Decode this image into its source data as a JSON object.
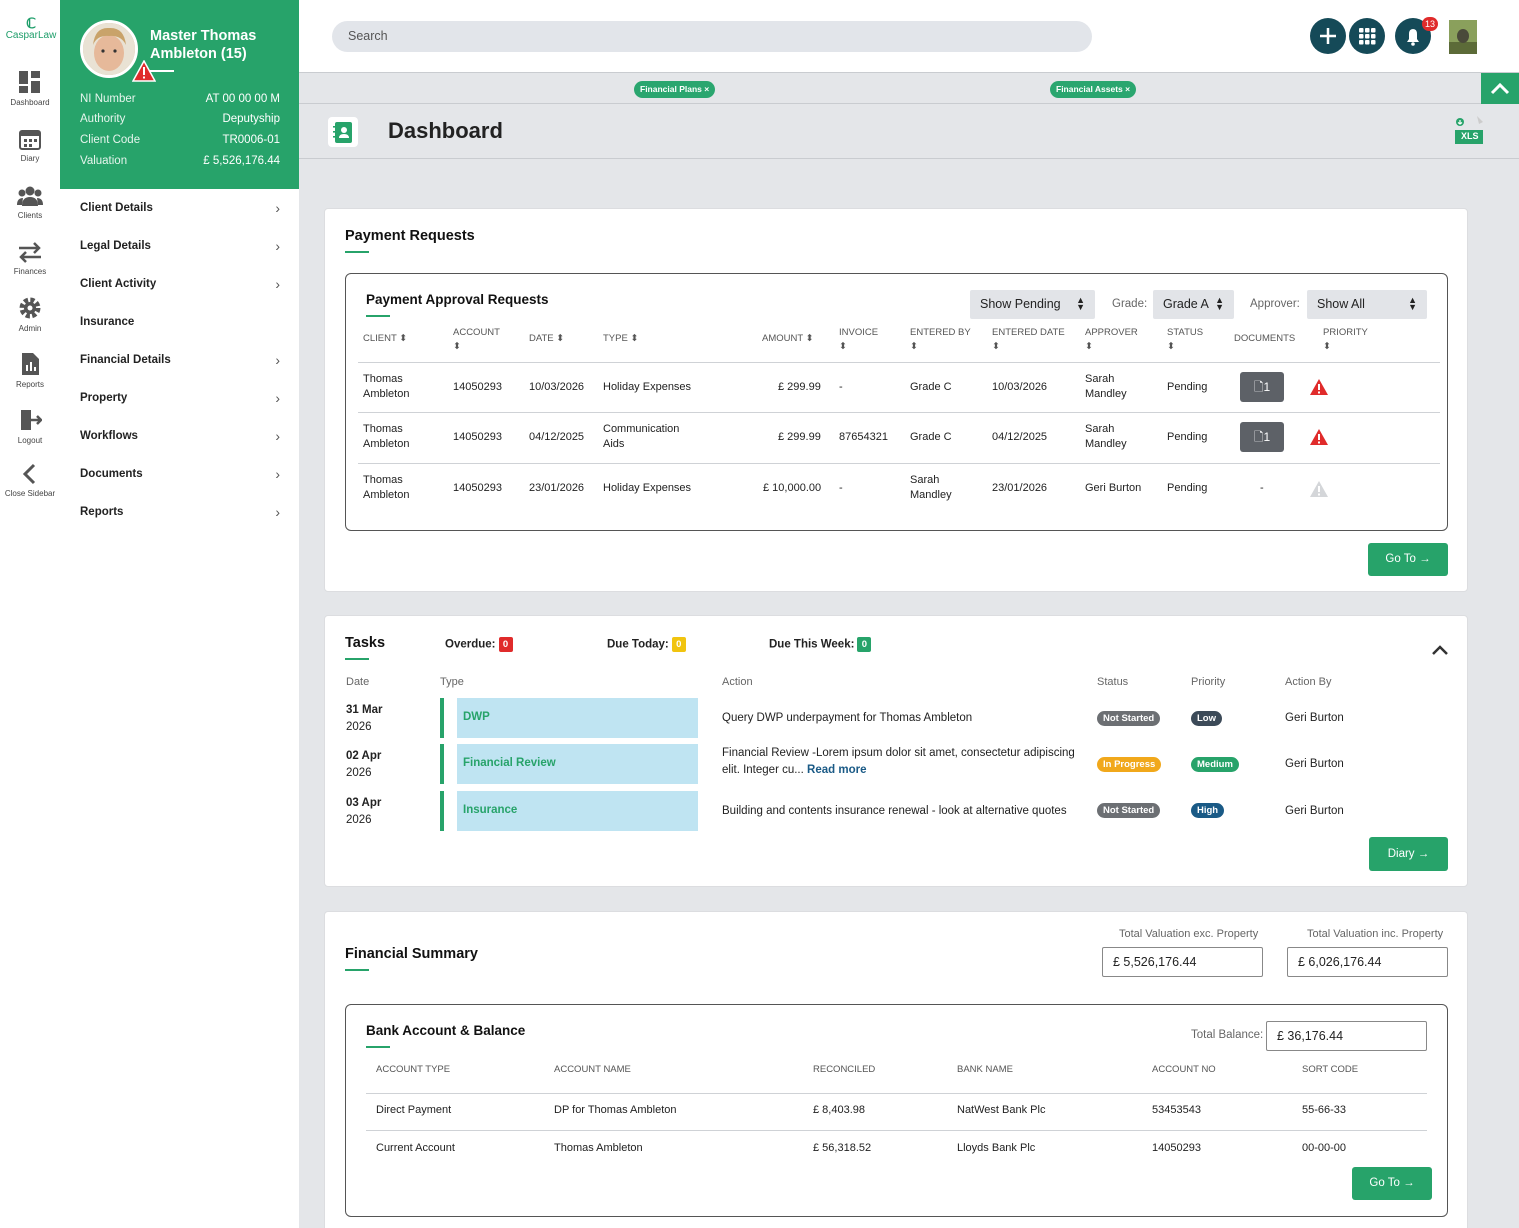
{
  "brand": {
    "name": "CasparLaw"
  },
  "rail": [
    {
      "label": "Dashboard",
      "icon": "dashboard-icon"
    },
    {
      "label": "Diary",
      "icon": "calendar-icon"
    },
    {
      "label": "Clients",
      "icon": "users-icon"
    },
    {
      "label": "Finances",
      "icon": "transfer-icon"
    },
    {
      "label": "Admin",
      "icon": "gear-icon"
    },
    {
      "label": "Reports",
      "icon": "report-icon"
    },
    {
      "label": "Logout",
      "icon": "logout-icon"
    },
    {
      "label": "Close Sidebar",
      "icon": "chevron-left-icon"
    }
  ],
  "client": {
    "name": "Master Thomas Ambleton (15)",
    "fields": [
      {
        "label": "NI Number",
        "value": "AT 00 00 00 M"
      },
      {
        "label": "Authority",
        "value": "Deputyship"
      },
      {
        "label": "Client Code",
        "value": "TR0006-01"
      },
      {
        "label": "Valuation",
        "value": "£ 5,526,176.44"
      }
    ]
  },
  "menu": [
    {
      "label": "Client Details",
      "chevron": true
    },
    {
      "label": "Legal Details",
      "chevron": true
    },
    {
      "label": "Client Activity",
      "chevron": true
    },
    {
      "label": "Insurance",
      "chevron": false
    },
    {
      "label": "Financial Details",
      "chevron": true
    },
    {
      "label": "Property",
      "chevron": true
    },
    {
      "label": "Workflows",
      "chevron": true
    },
    {
      "label": "Documents",
      "chevron": true
    },
    {
      "label": "Reports",
      "chevron": true
    }
  ],
  "topbar": {
    "search_placeholder": "Search",
    "notification_count": "13"
  },
  "filters": [
    {
      "label": "Financial Plans ×"
    },
    {
      "label": "Financial Assets ×"
    }
  ],
  "page": {
    "title": "Dashboard",
    "export_label": "XLS"
  },
  "payment_requests": {
    "title": "Payment Requests",
    "inner_title": "Payment Approval Requests",
    "status_filter": "Show Pending",
    "grade_label": "Grade:",
    "grade_value": "Grade A",
    "approver_label": "Approver:",
    "approver_value": "Show All",
    "columns": [
      "CLIENT",
      "ACCOUNT",
      "DATE",
      "TYPE",
      "AMOUNT",
      "INVOICE",
      "ENTERED BY",
      "ENTERED DATE",
      "APPROVER",
      "STATUS",
      "DOCUMENTS",
      "PRIORITY"
    ],
    "rows": [
      {
        "client": [
          "Thomas",
          "Ambleton"
        ],
        "account": "14050293",
        "date": "10/03/2026",
        "type": [
          "Holiday Expenses"
        ],
        "amount": "£ 299.99",
        "invoice": "-",
        "entered_by": [
          "Grade C"
        ],
        "entered_date": "10/03/2026",
        "approver": [
          "Sarah",
          "Mandley"
        ],
        "status": "Pending",
        "documents": "1",
        "priority": "high"
      },
      {
        "client": [
          "Thomas",
          "Ambleton"
        ],
        "account": "14050293",
        "date": "04/12/2025",
        "type": [
          "Communication",
          "Aids"
        ],
        "amount": "£ 299.99",
        "invoice": "87654321",
        "entered_by": [
          "Grade C"
        ],
        "entered_date": "04/12/2025",
        "approver": [
          "Sarah",
          "Mandley"
        ],
        "status": "Pending",
        "documents": "1",
        "priority": "high"
      },
      {
        "client": [
          "Thomas",
          "Ambleton"
        ],
        "account": "14050293",
        "date": "23/01/2026",
        "type": [
          "Holiday Expenses"
        ],
        "amount": "£ 10,000.00",
        "invoice": "-",
        "entered_by": [
          "Sarah",
          "Mandley"
        ],
        "entered_date": "23/01/2026",
        "approver": [
          "Geri Burton"
        ],
        "status": "Pending",
        "documents": "-",
        "priority": "none"
      }
    ],
    "goto_label": "Go To"
  },
  "tasks": {
    "title": "Tasks",
    "overdue_label": "Overdue:",
    "overdue_count": "0",
    "today_label": "Due Today:",
    "today_count": "0",
    "week_label": "Due This Week:",
    "week_count": "0",
    "columns": [
      "Date",
      "Type",
      "Action",
      "Status",
      "Priority",
      "Action By"
    ],
    "rows": [
      {
        "date": "31 Mar",
        "year": "2026",
        "type": "DWP",
        "action": "Query DWP underpayment for Thomas Ambleton",
        "action_more": "",
        "status": "Not Started",
        "priority": "Low",
        "action_by": "Geri Burton"
      },
      {
        "date": "02 Apr",
        "year": "2026",
        "type": "Financial Review",
        "action": "Financial Review -Lorem ipsum dolor sit amet, consectetur adipiscing",
        "action2": "elit. Integer cu...",
        "action_more": "Read more",
        "status": "In Progress",
        "priority": "Medium",
        "action_by": "Geri Burton"
      },
      {
        "date": "03 Apr",
        "year": "2026",
        "type": "Insurance",
        "action": "Building and contents insurance renewal - look at alternative quotes",
        "action_more": "",
        "status": "Not Started",
        "priority": "High",
        "action_by": "Geri Burton"
      }
    ],
    "diary_label": "Diary",
    "colors": {
      "not_started": "#6c6f73",
      "in_progress": "#f1a81b",
      "low": "#3c4a58",
      "medium": "#27a36a",
      "high": "#1a5a86"
    }
  },
  "financial_summary": {
    "title": "Financial Summary",
    "exc_label": "Total Valuation exc. Property",
    "exc_value": "£ 5,526,176.44",
    "inc_label": "Total Valuation inc. Property",
    "inc_value": "£ 6,026,176.44",
    "bank": {
      "title": "Bank Account & Balance",
      "total_label": "Total Balance:",
      "total_value": "£ 36,176.44",
      "columns": [
        "ACCOUNT TYPE",
        "ACCOUNT NAME",
        "RECONCILED",
        "BANK NAME",
        "ACCOUNT NO",
        "SORT CODE"
      ],
      "rows": [
        {
          "type": "Direct Payment",
          "name": "DP for Thomas Ambleton",
          "reconciled": "£ 8,403.98",
          "bank": "NatWest Bank Plc",
          "account_no": "53453543",
          "sort_code": "55-66-33"
        },
        {
          "type": "Current Account",
          "name": "Thomas Ambleton",
          "reconciled": "£ 56,318.52",
          "bank": "Lloyds Bank Plc",
          "account_no": "14050293",
          "sort_code": "00-00-00"
        }
      ],
      "goto_label": "Go To"
    }
  },
  "colors": {
    "brand_green": "#27a36a",
    "dark_teal": "#154a58",
    "danger": "#e02b2b",
    "warning": "#f1c40f"
  }
}
